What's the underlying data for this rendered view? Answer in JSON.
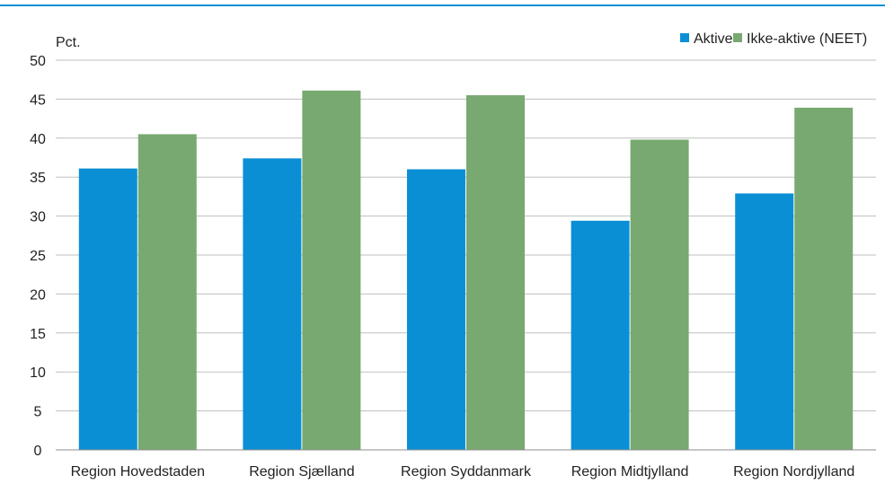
{
  "chart_data": {
    "type": "bar",
    "unit_label": "Pct.",
    "categories": [
      "Region Hovedstaden",
      "Region Sjælland",
      "Region Syddanmark",
      "Region Midtjylland",
      "Region Nordjylland"
    ],
    "series": [
      {
        "name": "Aktive",
        "color": "#0a8fd5",
        "values": [
          36.1,
          37.4,
          36.0,
          29.4,
          32.9
        ]
      },
      {
        "name": "Ikke-aktive (NEET)",
        "color": "#77a970",
        "values": [
          40.5,
          46.1,
          45.5,
          39.8,
          43.9
        ]
      }
    ],
    "ylim": [
      0,
      50
    ],
    "yticks": [
      "0",
      "5",
      "10",
      "15",
      "20",
      "25",
      "30",
      "35",
      "40",
      "45",
      "50"
    ],
    "grid": true,
    "legend_position": "top-right",
    "colors": {
      "accent_rule": "#0a8fd5",
      "grid": "#bfbfbf",
      "axis": "#8c8c8c"
    }
  }
}
